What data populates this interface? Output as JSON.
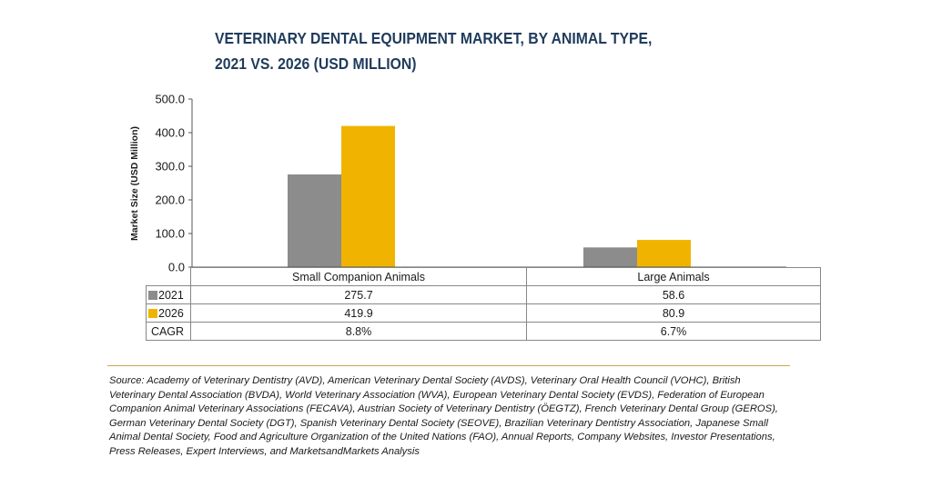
{
  "chart_data": {
    "type": "bar",
    "title_lines": [
      "VETERINARY DENTAL EQUIPMENT MARKET, BY ANIMAL TYPE,",
      "2021 VS. 2026 (USD MILLION)"
    ],
    "ylabel": "Market Size (USD Million)",
    "xlabel": "",
    "ylim": [
      0,
      500
    ],
    "yticks": [
      "0.0",
      "100.0",
      "200.0",
      "300.0",
      "400.0",
      "500.0"
    ],
    "ytick_values": [
      0,
      100,
      200,
      300,
      400,
      500
    ],
    "categories": [
      "Small Companion Animals",
      "Large Animals"
    ],
    "series": [
      {
        "name": "2021",
        "color": "#8c8c8c",
        "values": [
          275.7,
          58.6
        ],
        "labels": [
          "275.7",
          "58.6"
        ]
      },
      {
        "name": "2026",
        "color": "#f0b400",
        "values": [
          419.9,
          80.9
        ],
        "labels": [
          "419.9",
          "80.9"
        ]
      }
    ],
    "cagr_label": "CAGR",
    "cagr": [
      "8.8%",
      "6.7%"
    ],
    "grid": false,
    "legend": "data table"
  },
  "source": "Source: Academy of Veterinary Dentistry (AVD), American Veterinary Dental Society (AVDS), Veterinary Oral Health Council (VOHC), British Veterinary Dental Association (BVDA), World Veterinary Association (WVA), European Veterinary Dental Society (EVDS), Federation of European Companion Animal Veterinary Associations (FECAVA), Austrian Society of Veterinary Dentistry (ÖEGTZ), French Veterinary Dental Group (GEROS), German Veterinary Dental Society (DGT), Spanish Veterinary Dental Society (SEOVE), Brazilian Veterinary Dentistry Association, Japanese Small Animal Dental Society, Food and Agriculture Organization of the United Nations (FAO), Annual Reports, Company Websites, Investor Presentations, Press Releases, Expert Interviews, and MarketsandMarkets Analysis"
}
